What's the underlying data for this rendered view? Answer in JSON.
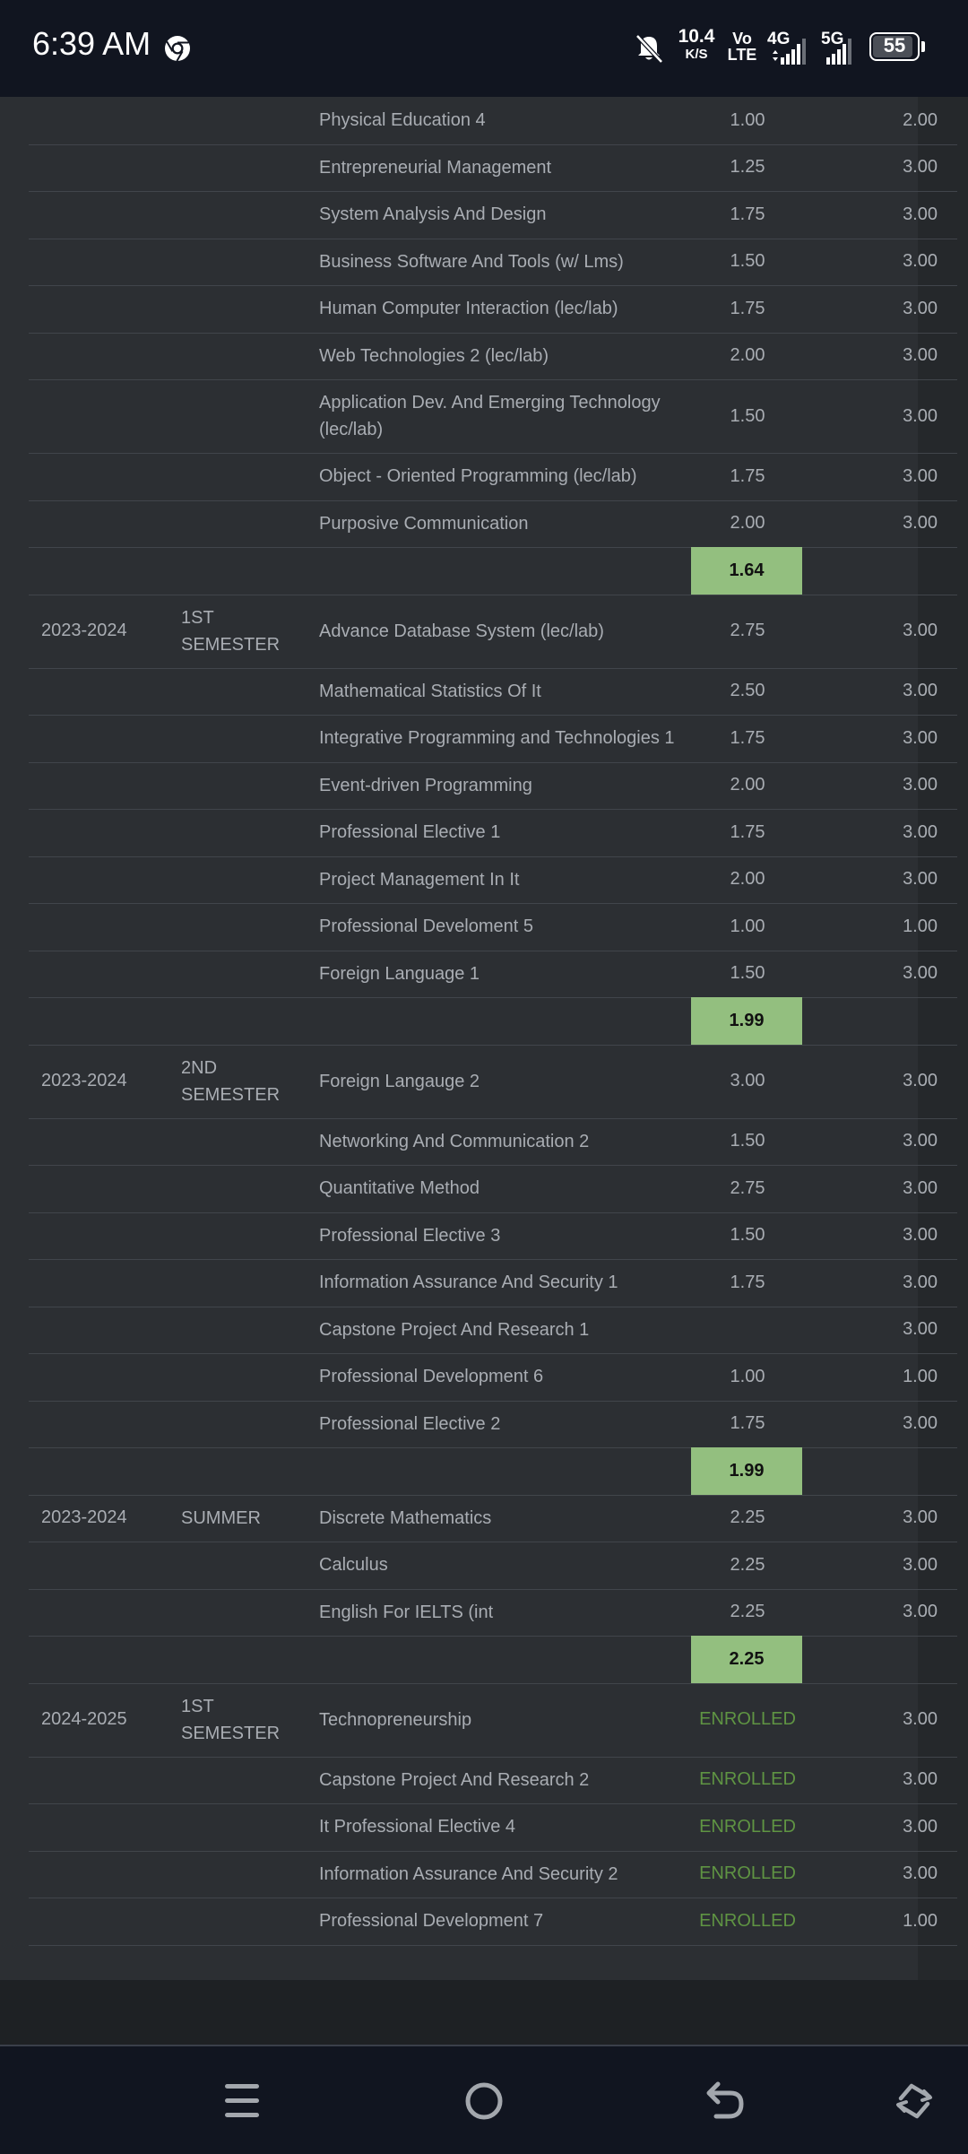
{
  "status_bar": {
    "time": "6:39 AM",
    "net_speed_value": "10.4",
    "net_speed_unit": "K/S",
    "volte_line1": "Vo",
    "volte_line2": "LTE",
    "network1": "4G",
    "network2": "5G",
    "battery": "55",
    "icons": [
      "chrome-icon",
      "bell-off-icon",
      "signal-icon",
      "battery-icon"
    ]
  },
  "colors": {
    "panel_bg": "#2c2f33",
    "gpa_highlight": "#93bf7f",
    "enrolled_text": "#5f9443",
    "text": "#a9adb3"
  },
  "rows": [
    {
      "year": "",
      "semester": "",
      "subject": "Physical Education 4",
      "grade": "1.00",
      "units": "2.00"
    },
    {
      "year": "",
      "semester": "",
      "subject": "Entrepreneurial Management",
      "grade": "1.25",
      "units": "3.00"
    },
    {
      "year": "",
      "semester": "",
      "subject": "System Analysis And Design",
      "grade": "1.75",
      "units": "3.00"
    },
    {
      "year": "",
      "semester": "",
      "subject": "Business Software And Tools (w/ Lms)",
      "grade": "1.50",
      "units": "3.00"
    },
    {
      "year": "",
      "semester": "",
      "subject": "Human Computer Interaction (lec/lab)",
      "grade": "1.75",
      "units": "3.00"
    },
    {
      "year": "",
      "semester": "",
      "subject": "Web Technologies 2 (lec/lab)",
      "grade": "2.00",
      "units": "3.00"
    },
    {
      "year": "",
      "semester": "",
      "subject": "Application Dev. And Emerging Technology (lec/lab)",
      "grade": "1.50",
      "units": "3.00"
    },
    {
      "year": "",
      "semester": "",
      "subject": "Object - Oriented Programming (lec/lab)",
      "grade": "1.75",
      "units": "3.00"
    },
    {
      "year": "",
      "semester": "",
      "subject": "Purposive Communication",
      "grade": "2.00",
      "units": "3.00"
    },
    {
      "gpa": "1.64"
    },
    {
      "year": "2023-2024",
      "semester": "1ST SEMESTER",
      "subject": "Advance Database System (lec/lab)",
      "grade": "2.75",
      "units": "3.00"
    },
    {
      "year": "",
      "semester": "",
      "subject": "Mathematical Statistics Of It",
      "grade": "2.50",
      "units": "3.00"
    },
    {
      "year": "",
      "semester": "",
      "subject": "Integrative Programming and Technologies 1",
      "grade": "1.75",
      "units": "3.00"
    },
    {
      "year": "",
      "semester": "",
      "subject": "Event-driven Programming",
      "grade": "2.00",
      "units": "3.00"
    },
    {
      "year": "",
      "semester": "",
      "subject": "Professional Elective 1",
      "grade": "1.75",
      "units": "3.00"
    },
    {
      "year": "",
      "semester": "",
      "subject": "Project Management In It",
      "grade": "2.00",
      "units": "3.00"
    },
    {
      "year": "",
      "semester": "",
      "subject": "Professional Develoment 5",
      "grade": "1.00",
      "units": "1.00"
    },
    {
      "year": "",
      "semester": "",
      "subject": "Foreign Language 1",
      "grade": "1.50",
      "units": "3.00"
    },
    {
      "gpa": "1.99"
    },
    {
      "year": "2023-2024",
      "semester": "2ND SEMESTER",
      "subject": "Foreign Langauge 2",
      "grade": "3.00",
      "units": "3.00"
    },
    {
      "year": "",
      "semester": "",
      "subject": "Networking And Communication 2",
      "grade": "1.50",
      "units": "3.00"
    },
    {
      "year": "",
      "semester": "",
      "subject": "Quantitative Method",
      "grade": "2.75",
      "units": "3.00"
    },
    {
      "year": "",
      "semester": "",
      "subject": "Professional Elective 3",
      "grade": "1.50",
      "units": "3.00"
    },
    {
      "year": "",
      "semester": "",
      "subject": "Information Assurance And Security 1",
      "grade": "1.75",
      "units": "3.00"
    },
    {
      "year": "",
      "semester": "",
      "subject": "Capstone Project And Research 1",
      "grade": "",
      "units": "3.00"
    },
    {
      "year": "",
      "semester": "",
      "subject": "Professional Development 6",
      "grade": "1.00",
      "units": "1.00"
    },
    {
      "year": "",
      "semester": "",
      "subject": "Professional Elective 2",
      "grade": "1.75",
      "units": "3.00"
    },
    {
      "gpa": "1.99"
    },
    {
      "year": "2023-2024",
      "semester": "SUMMER",
      "subject": "Discrete Mathematics",
      "grade": "2.25",
      "units": "3.00"
    },
    {
      "year": "",
      "semester": "",
      "subject": "Calculus",
      "grade": "2.25",
      "units": "3.00"
    },
    {
      "year": "",
      "semester": "",
      "subject": "English For IELTS (int",
      "grade": "2.25",
      "units": "3.00"
    },
    {
      "gpa": "2.25"
    },
    {
      "year": "2024-2025",
      "semester": "1ST SEMESTER",
      "subject": "Technopreneurship",
      "grade": "ENROLLED",
      "units": "3.00"
    },
    {
      "year": "",
      "semester": "",
      "subject": "Capstone Project And Research 2",
      "grade": "ENROLLED",
      "units": "3.00"
    },
    {
      "year": "",
      "semester": "",
      "subject": "It Professional Elective 4",
      "grade": "ENROLLED",
      "units": "3.00"
    },
    {
      "year": "",
      "semester": "",
      "subject": "Information Assurance And Security 2",
      "grade": "ENROLLED",
      "units": "3.00"
    },
    {
      "year": "",
      "semester": "",
      "subject": "Professional Development 7",
      "grade": "ENROLLED",
      "units": "1.00"
    }
  ],
  "nav_bar": {
    "icons": [
      "menu-icon",
      "home-icon",
      "back-icon",
      "rotate-icon"
    ]
  }
}
